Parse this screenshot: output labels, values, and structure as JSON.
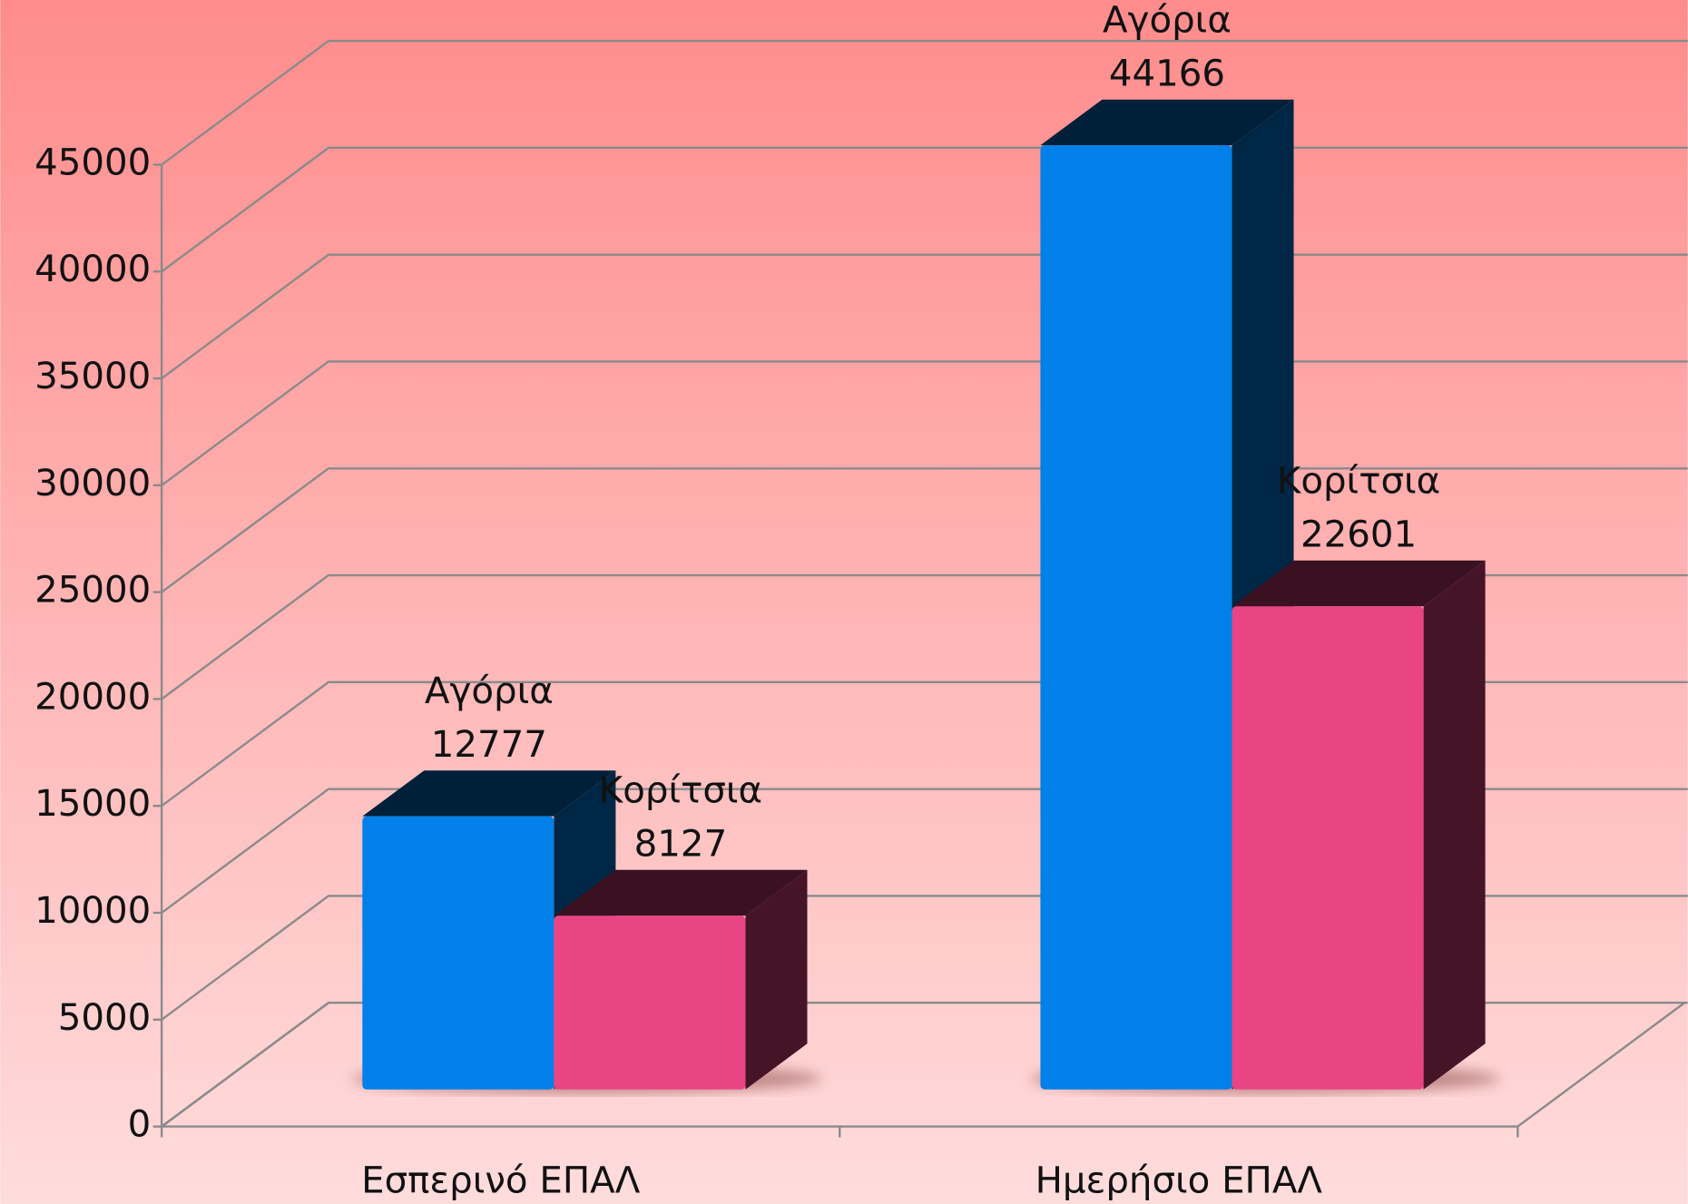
{
  "chart_data": {
    "type": "bar3d",
    "categories": [
      "Εσπερινό ΕΠΑΛ",
      "Ημερήσιο ΕΠΑΛ"
    ],
    "series": [
      {
        "name": "Αγόρια",
        "color": "#0080e8",
        "values": [
          12777,
          44166
        ]
      },
      {
        "name": "Κορίτσια",
        "color": "#e94584",
        "values": [
          8127,
          22601
        ]
      }
    ],
    "ylim": [
      0,
      45000
    ],
    "yticks": [
      0,
      5000,
      10000,
      15000,
      20000,
      25000,
      30000,
      35000,
      40000,
      45000
    ],
    "grid": true
  }
}
